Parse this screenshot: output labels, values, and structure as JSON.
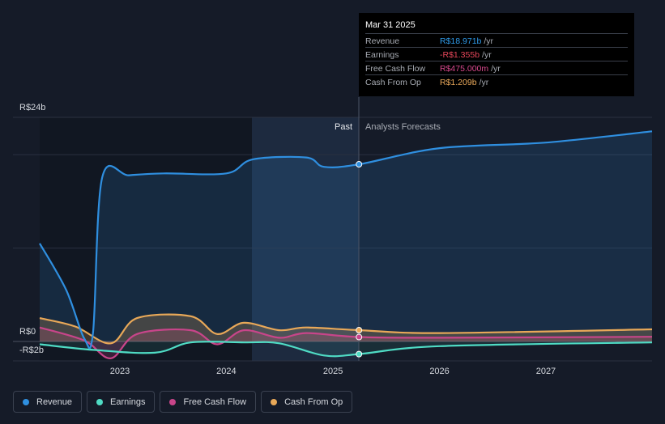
{
  "tooltip": {
    "date": "Mar 31 2025",
    "rows": [
      {
        "label": "Revenue",
        "value": "R$18.971b",
        "unit": "/yr",
        "color": "#2f9bea"
      },
      {
        "label": "Earnings",
        "value": "-R$1.355b",
        "unit": "/yr",
        "color": "#e8475a"
      },
      {
        "label": "Free Cash Flow",
        "value": "R$475.000m",
        "unit": "/yr",
        "color": "#d9498e"
      },
      {
        "label": "Cash From Op",
        "value": "R$1.209b",
        "unit": "/yr",
        "color": "#e9a85a"
      }
    ]
  },
  "legend": [
    {
      "label": "Revenue",
      "color": "#2f8fe0"
    },
    {
      "label": "Earnings",
      "color": "#4fdbc4"
    },
    {
      "label": "Free Cash Flow",
      "color": "#c8458a"
    },
    {
      "label": "Cash From Op",
      "color": "#e8a858"
    }
  ],
  "chart_data": {
    "type": "line",
    "y_tick_labels": [
      "R$24b",
      "R$0",
      "-R$2b"
    ],
    "x_tick_labels": [
      "2023",
      "2024",
      "2025",
      "2026",
      "2027"
    ],
    "section_labels": {
      "past": "Past",
      "forecast": "Analysts Forecasts"
    },
    "ylim": [
      -2,
      24
    ],
    "x_range": [
      "2022-04",
      "2027-12"
    ],
    "forecast_start": "2025-03-31",
    "series": [
      {
        "name": "Revenue",
        "color": "#2f8fe0",
        "points": [
          [
            "2022-04-01",
            10.5
          ],
          [
            "2022-07-01",
            5.5
          ],
          [
            "2022-09-01",
            0.3
          ],
          [
            "2022-10-01",
            1.0
          ],
          [
            "2022-11-01",
            17.5
          ],
          [
            "2023-02-01",
            17.8
          ],
          [
            "2023-06-01",
            18.0
          ],
          [
            "2024-01-01",
            18.0
          ],
          [
            "2024-04-01",
            19.5
          ],
          [
            "2024-10-01",
            19.7
          ],
          [
            "2024-12-01",
            18.7
          ],
          [
            "2025-03-31",
            18.97
          ],
          [
            "2026-01-01",
            20.7
          ],
          [
            "2027-01-01",
            21.3
          ],
          [
            "2027-12-31",
            22.5
          ]
        ]
      },
      {
        "name": "Earnings",
        "color": "#4fdbc4",
        "points": [
          [
            "2022-04-01",
            -0.3
          ],
          [
            "2022-10-01",
            -0.9
          ],
          [
            "2023-05-01",
            -1.2
          ],
          [
            "2023-09-01",
            -0.1
          ],
          [
            "2024-03-01",
            -0.1
          ],
          [
            "2024-07-01",
            -0.2
          ],
          [
            "2024-12-01",
            -1.5
          ],
          [
            "2025-03-31",
            -1.355
          ],
          [
            "2026-01-01",
            -0.5
          ],
          [
            "2027-12-31",
            -0.1
          ]
        ]
      },
      {
        "name": "Free Cash Flow",
        "color": "#c8458a",
        "points": [
          [
            "2022-04-01",
            1.5
          ],
          [
            "2022-09-01",
            0.1
          ],
          [
            "2022-12-01",
            -1.8
          ],
          [
            "2023-03-01",
            0.8
          ],
          [
            "2023-09-01",
            1.2
          ],
          [
            "2023-12-01",
            -0.3
          ],
          [
            "2024-03-01",
            1.2
          ],
          [
            "2024-07-01",
            0.4
          ],
          [
            "2024-10-01",
            0.9
          ],
          [
            "2025-03-31",
            0.475
          ],
          [
            "2026-01-01",
            0.4
          ],
          [
            "2027-12-31",
            0.5
          ]
        ]
      },
      {
        "name": "Cash From Op",
        "color": "#e8a858",
        "points": [
          [
            "2022-04-01",
            2.5
          ],
          [
            "2022-08-01",
            1.6
          ],
          [
            "2022-12-01",
            -0.2
          ],
          [
            "2023-03-01",
            2.5
          ],
          [
            "2023-09-01",
            2.7
          ],
          [
            "2023-12-01",
            0.8
          ],
          [
            "2024-03-01",
            2.0
          ],
          [
            "2024-07-01",
            1.2
          ],
          [
            "2024-10-01",
            1.5
          ],
          [
            "2025-03-31",
            1.209
          ],
          [
            "2026-01-01",
            0.9
          ],
          [
            "2027-12-31",
            1.3
          ]
        ]
      }
    ]
  }
}
